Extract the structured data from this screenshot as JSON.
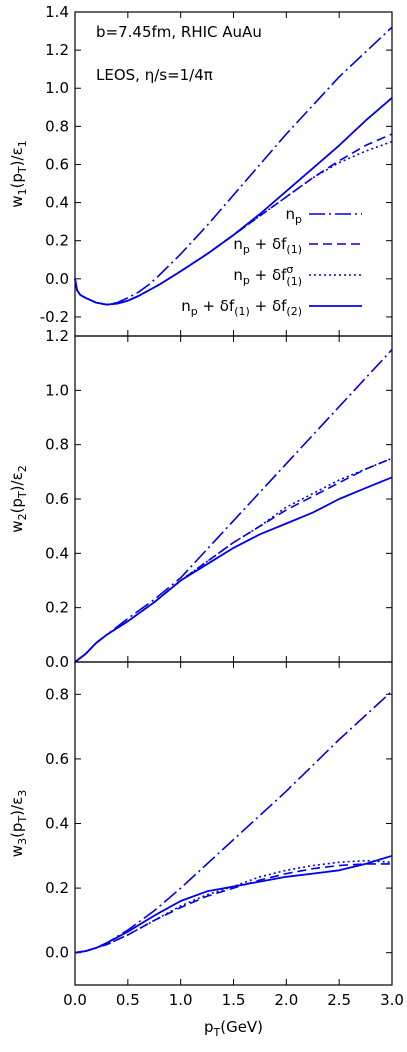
{
  "x_axis": {
    "label_main": "p",
    "label_sub": "T",
    "label_unit": "(GeV)",
    "range": [
      0,
      3.0
    ],
    "ticks": [
      0.0,
      0.5,
      1.0,
      1.5,
      2.0,
      2.5,
      3.0
    ],
    "tick_labels": [
      "0.0",
      "0.5",
      "1.0",
      "1.5",
      "2.0",
      "2.5",
      "3.0"
    ]
  },
  "annotations": {
    "line1": "b=7.45fm, RHIC AuAu",
    "line2": "LEOS, η/s=1/4π"
  },
  "legend": {
    "placement": "right, panel 1",
    "entries": [
      {
        "parts": [
          "n",
          "p"
        ]
      },
      {
        "parts": [
          "n",
          "p",
          " + δf",
          "(1)"
        ]
      },
      {
        "parts": [
          "n",
          "p",
          " +  δf",
          "σ",
          "(1)"
        ]
      },
      {
        "parts": [
          "n",
          "p",
          " +  δf",
          "(1)",
          " + δf",
          "(2)"
        ]
      }
    ]
  },
  "styles": {
    "color": "#0000ee",
    "series": [
      {
        "dash": "16 4 2 4",
        "width": 1.6
      },
      {
        "dash": "9 5",
        "width": 1.6
      },
      {
        "dash": "2 3",
        "width": 1.6
      },
      {
        "dash": "",
        "width": 1.8
      }
    ]
  },
  "chart_data": [
    {
      "type": "line",
      "ylabel": {
        "w": "w",
        "wsub": "1",
        "p": "(p",
        "psub": "T",
        "close": ")/ε",
        "esub": "1"
      },
      "ylim": [
        -0.3,
        1.4
      ],
      "yticks": [
        -0.2,
        0.0,
        0.2,
        0.4,
        0.6,
        0.8,
        1.0,
        1.2,
        1.4
      ],
      "ytick_labels": [
        "-0.2",
        "0.0",
        "0.2",
        "0.4",
        "0.6",
        "0.8",
        "1.0",
        "1.2",
        "1.4"
      ],
      "series": [
        {
          "x": [
            0,
            0.02,
            0.05,
            0.1,
            0.2,
            0.3,
            0.4,
            0.5,
            0.6,
            0.7,
            0.8,
            1.0,
            1.25,
            1.5,
            1.75,
            2.0,
            2.25,
            2.5,
            2.75,
            3.0
          ],
          "y": [
            0,
            -0.06,
            -0.085,
            -0.1,
            -0.125,
            -0.135,
            -0.125,
            -0.1,
            -0.07,
            -0.03,
            0.02,
            0.13,
            0.28,
            0.44,
            0.6,
            0.76,
            0.91,
            1.06,
            1.19,
            1.32
          ]
        },
        {
          "x": [
            0,
            0.02,
            0.05,
            0.1,
            0.2,
            0.3,
            0.4,
            0.5,
            0.6,
            0.8,
            1.0,
            1.25,
            1.5,
            1.75,
            2.0,
            2.25,
            2.5,
            2.75,
            3.0
          ],
          "y": [
            0,
            -0.06,
            -0.085,
            -0.1,
            -0.125,
            -0.135,
            -0.13,
            -0.115,
            -0.09,
            -0.03,
            0.04,
            0.13,
            0.23,
            0.33,
            0.43,
            0.53,
            0.62,
            0.7,
            0.76
          ]
        },
        {
          "x": [
            0,
            0.02,
            0.05,
            0.1,
            0.2,
            0.3,
            0.4,
            0.5,
            0.6,
            0.8,
            1.0,
            1.25,
            1.5,
            1.75,
            2.0,
            2.25,
            2.5,
            2.75,
            3.0
          ],
          "y": [
            0,
            -0.06,
            -0.085,
            -0.1,
            -0.125,
            -0.135,
            -0.13,
            -0.115,
            -0.09,
            -0.03,
            0.04,
            0.13,
            0.23,
            0.33,
            0.43,
            0.53,
            0.61,
            0.67,
            0.72
          ]
        },
        {
          "x": [
            0,
            0.02,
            0.05,
            0.1,
            0.2,
            0.3,
            0.4,
            0.5,
            0.6,
            0.8,
            1.0,
            1.25,
            1.5,
            1.75,
            2.0,
            2.25,
            2.5,
            2.75,
            3.0
          ],
          "y": [
            0,
            -0.06,
            -0.085,
            -0.1,
            -0.125,
            -0.135,
            -0.13,
            -0.115,
            -0.09,
            -0.03,
            0.04,
            0.13,
            0.23,
            0.34,
            0.46,
            0.58,
            0.7,
            0.83,
            0.95
          ]
        }
      ]
    },
    {
      "type": "line",
      "ylabel": {
        "w": "w",
        "wsub": "2",
        "p": "(p",
        "psub": "T",
        "close": ")/ε",
        "esub": "2"
      },
      "ylim": [
        0.0,
        1.2
      ],
      "yticks": [
        0.0,
        0.2,
        0.4,
        0.6,
        0.8,
        1.0,
        1.2
      ],
      "ytick_labels": [
        "0.0",
        "0.2",
        "0.4",
        "0.6",
        "0.8",
        "1.0",
        "1.2"
      ],
      "series": [
        {
          "x": [
            0,
            0.1,
            0.2,
            0.3,
            0.5,
            0.75,
            1.0,
            1.5,
            2.0,
            2.5,
            3.0
          ],
          "y": [
            0,
            0.03,
            0.07,
            0.1,
            0.16,
            0.23,
            0.31,
            0.52,
            0.73,
            0.94,
            1.15
          ]
        },
        {
          "x": [
            0,
            0.1,
            0.2,
            0.3,
            0.5,
            0.75,
            1.0,
            1.25,
            1.5,
            1.75,
            2.0,
            2.25,
            2.5,
            2.75,
            3.0
          ],
          "y": [
            0,
            0.03,
            0.07,
            0.1,
            0.15,
            0.22,
            0.3,
            0.37,
            0.44,
            0.5,
            0.56,
            0.61,
            0.66,
            0.71,
            0.75
          ]
        },
        {
          "x": [
            0,
            0.1,
            0.2,
            0.3,
            0.5,
            0.75,
            1.0,
            1.25,
            1.5,
            1.75,
            2.0,
            2.25,
            2.5,
            2.75,
            3.0
          ],
          "y": [
            0,
            0.03,
            0.07,
            0.1,
            0.15,
            0.22,
            0.3,
            0.37,
            0.44,
            0.5,
            0.57,
            0.62,
            0.67,
            0.71,
            0.75
          ]
        },
        {
          "x": [
            0,
            0.1,
            0.2,
            0.3,
            0.5,
            0.75,
            1.0,
            1.25,
            1.5,
            1.75,
            2.0,
            2.25,
            2.5,
            2.75,
            3.0
          ],
          "y": [
            0,
            0.03,
            0.07,
            0.1,
            0.15,
            0.22,
            0.3,
            0.36,
            0.42,
            0.47,
            0.51,
            0.55,
            0.6,
            0.64,
            0.68
          ]
        }
      ]
    },
    {
      "type": "line",
      "ylabel": {
        "w": "w",
        "wsub": "3",
        "p": "(p",
        "psub": "T",
        "close": ")/ε",
        "esub": "3"
      },
      "ylim": [
        -0.1,
        0.9
      ],
      "yticks": [
        0.0,
        0.2,
        0.4,
        0.6,
        0.8
      ],
      "ytick_labels": [
        "0.0",
        "0.2",
        "0.4",
        "0.6",
        "0.8"
      ],
      "series": [
        {
          "x": [
            0,
            0.1,
            0.2,
            0.3,
            0.5,
            0.75,
            1.0,
            1.5,
            2.0,
            2.5,
            3.0
          ],
          "y": [
            0,
            0.005,
            0.015,
            0.03,
            0.07,
            0.13,
            0.2,
            0.35,
            0.5,
            0.66,
            0.81
          ]
        },
        {
          "x": [
            0,
            0.1,
            0.2,
            0.3,
            0.5,
            0.75,
            1.0,
            1.25,
            1.5,
            1.75,
            2.0,
            2.25,
            2.5,
            2.75,
            3.0
          ],
          "y": [
            0,
            0.005,
            0.015,
            0.025,
            0.055,
            0.1,
            0.14,
            0.175,
            0.2,
            0.225,
            0.245,
            0.26,
            0.27,
            0.275,
            0.275
          ]
        },
        {
          "x": [
            0,
            0.1,
            0.2,
            0.3,
            0.5,
            0.75,
            1.0,
            1.25,
            1.5,
            1.75,
            2.0,
            2.25,
            2.5,
            2.75,
            3.0
          ],
          "y": [
            0,
            0.005,
            0.015,
            0.025,
            0.055,
            0.1,
            0.145,
            0.18,
            0.205,
            0.235,
            0.255,
            0.27,
            0.28,
            0.285,
            0.28
          ]
        },
        {
          "x": [
            0,
            0.1,
            0.2,
            0.3,
            0.5,
            0.75,
            1.0,
            1.25,
            1.5,
            1.75,
            2.0,
            2.25,
            2.5,
            2.75,
            3.0
          ],
          "y": [
            0,
            0.005,
            0.015,
            0.03,
            0.065,
            0.115,
            0.16,
            0.19,
            0.205,
            0.22,
            0.235,
            0.245,
            0.255,
            0.275,
            0.3
          ]
        }
      ]
    }
  ]
}
